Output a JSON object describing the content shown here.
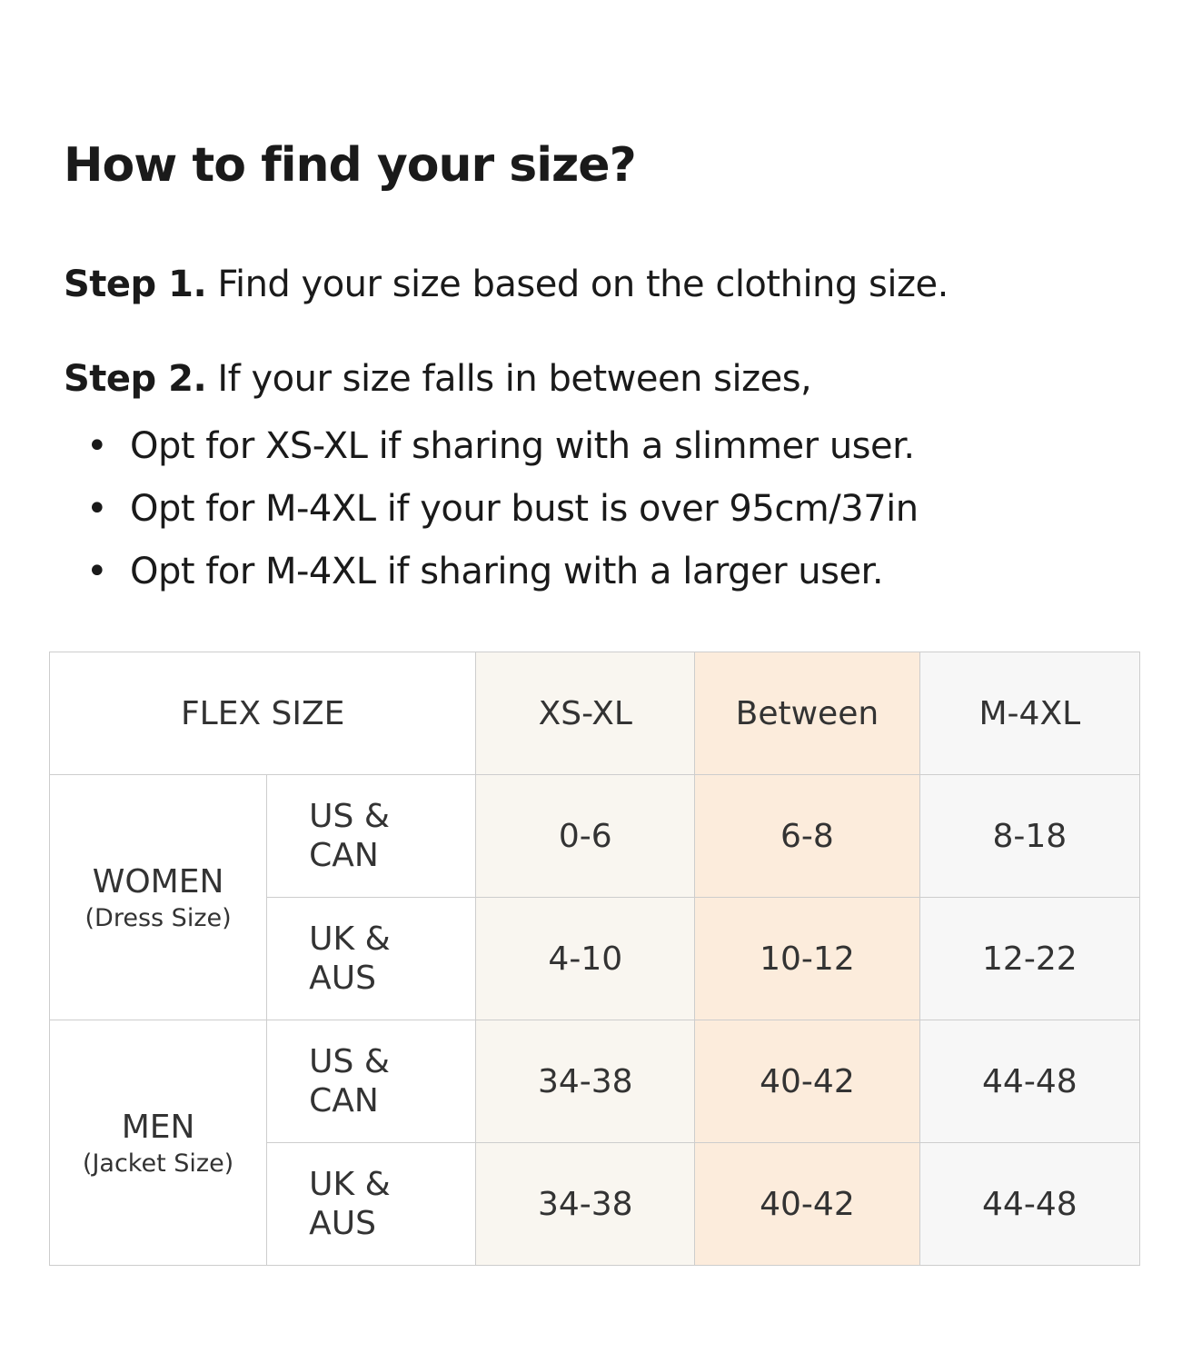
{
  "title": "How to find your size?",
  "steps": [
    {
      "label": "Step 1.",
      "text": " Find your size based on the clothing size."
    },
    {
      "label": "Step 2.",
      "text": " If your size falls in between sizes,"
    }
  ],
  "bullets": [
    "Opt for XS-XL if sharing with a slimmer user.",
    "Opt for M-4XL if your bust is over 95cm/37in",
    "Opt for M-4XL if sharing with a larger user."
  ],
  "colors": {
    "xs_xl": "#f9f6f0",
    "between": "#fcecdc",
    "m_4xl": "#f7f7f7",
    "border": "#cdcdcd"
  },
  "table": {
    "header": {
      "label": "FLEX SIZE",
      "columns": [
        "XS-XL",
        "Between",
        "M-4XL"
      ]
    },
    "groups": [
      {
        "name": "WOMEN",
        "sub": "(Dress Size)",
        "rows": [
          {
            "region": [
              "US &",
              "CAN"
            ],
            "values": [
              "0-6",
              "6-8",
              "8-18"
            ]
          },
          {
            "region": [
              "UK &",
              "AUS"
            ],
            "values": [
              "4-10",
              "10-12",
              "12-22"
            ]
          }
        ]
      },
      {
        "name": "MEN",
        "sub": "(Jacket Size)",
        "rows": [
          {
            "region": [
              "US &",
              "CAN"
            ],
            "values": [
              "34-38",
              "40-42",
              "44-48"
            ]
          },
          {
            "region": [
              "UK &",
              "AUS"
            ],
            "values": [
              "34-38",
              "40-42",
              "44-48"
            ]
          }
        ]
      }
    ]
  }
}
